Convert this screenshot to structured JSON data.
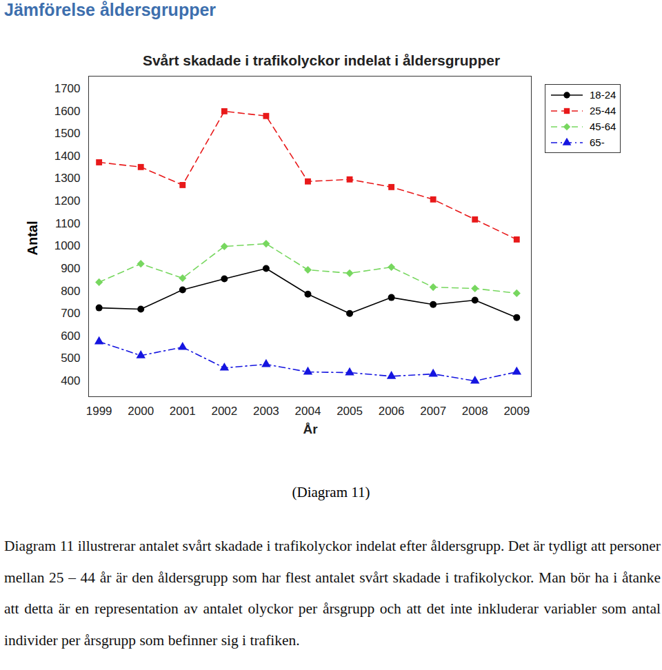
{
  "page": {
    "heading": "Jämförelse åldersgrupper",
    "caption": "(Diagram 11)",
    "paragraph": "Diagram 11 illustrerar antalet svårt skadade i trafikolyckor indelat efter åldersgrupp. Det är tydligt att personer mellan 25 – 44 år är den åldersgrupp som har flest antalet svårt skadade i trafikolyckor. Man bör ha i åtanke att detta är en representation av antalet olyckor per årsgrupp och att det inte inkluderar variabler som antal individer per årsgrupp som befinner sig i trafiken."
  },
  "chart_data": {
    "type": "line",
    "title": "Svårt skadade i trafikolyckor indelat i åldersgrupper",
    "x_label": "År",
    "y_label": "Antal",
    "x": [
      1999,
      2000,
      2001,
      2002,
      2003,
      2004,
      2005,
      2006,
      2007,
      2008,
      2009
    ],
    "series": [
      {
        "name": "18-24",
        "color": "#000000",
        "marker": "circle",
        "line_style": "solid",
        "values": [
          725,
          719,
          805,
          854,
          900,
          786,
          700,
          771,
          740,
          759,
          682
        ]
      },
      {
        "name": "25-44",
        "color": "#e8191a",
        "marker": "square",
        "line_style": "dashed",
        "values": [
          1372,
          1351,
          1271,
          1599,
          1578,
          1287,
          1296,
          1262,
          1207,
          1118,
          1029
        ]
      },
      {
        "name": "45-64",
        "color": "#77d75f",
        "marker": "diamond",
        "line_style": "dashed",
        "values": [
          839,
          921,
          857,
          998,
          1010,
          894,
          879,
          906,
          817,
          811,
          790
        ]
      },
      {
        "name": "65-",
        "color": "#1515e0",
        "marker": "triangle",
        "line_style": "dashdot",
        "values": [
          575,
          513,
          550,
          458,
          474,
          440,
          437,
          421,
          431,
          400,
          440
        ]
      }
    ],
    "xlim": [
      1998.75,
      2009.35
    ],
    "ylim": [
      330,
      1755
    ],
    "xticks": [
      1999,
      2000,
      2001,
      2002,
      2003,
      2004,
      2005,
      2006,
      2007,
      2008,
      2009
    ],
    "yticks": [
      400,
      500,
      600,
      700,
      800,
      900,
      1000,
      1100,
      1200,
      1300,
      1400,
      1500,
      1600,
      1700
    ],
    "grid": false,
    "legend": "right"
  }
}
